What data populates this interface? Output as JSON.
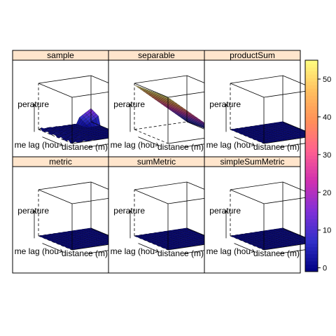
{
  "chart_data": {
    "type": "surface",
    "layout": "3x2 lattice of 3D wireframe surface panels",
    "axis_labels": {
      "x": "distance (m)",
      "y": "time lag (hours)",
      "z": "temperature"
    },
    "visible_axis_text": {
      "x": "distance (m)",
      "y": "me lag (hou",
      "z": "perature"
    },
    "panels": [
      {
        "title": "sample",
        "surface": "sample"
      },
      {
        "title": "separable",
        "surface": "separable"
      },
      {
        "title": "productSum",
        "surface": "flat"
      },
      {
        "title": "metric",
        "surface": "flat"
      },
      {
        "title": "sumMetric",
        "surface": "flat"
      },
      {
        "title": "simpleSumMetric",
        "surface": "flat"
      }
    ],
    "colorkey": {
      "ticks": [
        0,
        10,
        20,
        30,
        40,
        50
      ],
      "range": [
        -1,
        55
      ],
      "palette": [
        "#000080",
        "#3030c8",
        "#8030d8",
        "#d030b0",
        "#ff6090",
        "#ff9058",
        "#ffc060",
        "#ffff80"
      ]
    },
    "strip_color": "#ffe5cc"
  }
}
